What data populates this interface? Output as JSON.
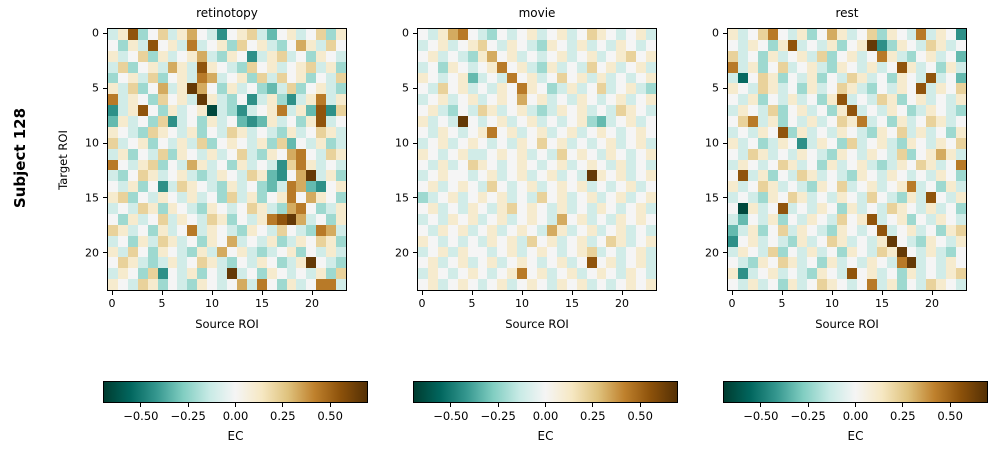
{
  "figure": {
    "left_label": "Subject 128"
  },
  "chart_data": {
    "type": "heatmap",
    "n_rows": 24,
    "n_cols": 24,
    "value_encoding": {
      "letters": "abcdefghijklm",
      "min": -0.66,
      "step": 0.11,
      "note": "each letter in rows strings maps to EC value = min + index*step; spaces are ignored"
    },
    "panels": [
      {
        "title": "retinotopy",
        "xlabel": "Source ROI",
        "ylabel": "Target ROI",
        "x_tick_labels": [
          "0",
          "5",
          "10",
          "15",
          "20"
        ],
        "y_tick_labels": [
          "0",
          "5",
          "10",
          "15",
          "20"
        ],
        "x_tick_values": [
          0,
          5,
          10,
          15,
          20
        ],
        "y_tick_values": [
          0,
          5,
          10,
          15,
          20
        ],
        "rows": [
          "fhlegi fhjgfc ghifdg hfgieh",
          "gehflg hfkfgh eighfe gjhfig",
          "hfgieh fghjfe hgcfhi fgehgf",
          "fieghf jhflhg feighf ghifhe",
          "eghfie ghfkjf gheifi ghegfi",
          "hfiegj fhmjge hfgedf ieghfe",
          "kfhgei ghfmhf egcfhe cfhkfh",
          "cfhlge hfghaf ecfghk fhdlci",
          "dhfgei cfgehf gdcdhf gehlfg",
          "hgfeih gfhegf ihfgfe hfgihf",
          "ifgheg fhfieg hgfhei dgfhef",
          "fhegfi ehgfhf gifehg jkgfih",
          "kgfhie gfjhfg ehfgfc ikhfgf",
          "fegihf ghfefh gfihdc gjmfhe",
          "gfhegc fihgfe hfgedf kjdcgh",
          "hiegfh gfhfge ifhegh kgjhge",
          "fgfihe hgfehg fgihfe jkgefh",
          "gehfgi fhgfih egfhkl mjfgeh",
          "ihfgeh fgkfhg fehgfi gfekjf",
          "fgehfi hfgehg jfgfhe fhgihe",
          "hfigeh gfehfj ghfefg hegfhf",
          "gihfef hfgihf egfhge fhmgfe",
          "fhgeic gfhegf mfgehg fgfhei",
          "hgfihe gfehgf gjfkge hfgkkf"
        ]
      },
      {
        "title": "movie",
        "xlabel": "Source ROI",
        "ylabel": "",
        "x_tick_labels": [
          "0",
          "5",
          "10",
          "15",
          "20"
        ],
        "y_tick_labels": [
          "0",
          "5",
          "10",
          "15",
          "20"
        ],
        "x_tick_values": [
          0,
          5,
          10,
          15,
          20
        ],
        "y_tick_values": [
          0,
          5,
          10,
          15,
          20
        ],
        "rows": [
          "gfhjkg fegfgh fghfgi hgfghf",
          "fghfgh igfhgf ehgfhf gfhgfg",
          "ghfgfe hjghfg fghfgh fghigh",
          "fgehgf ghkghf ehfgfi ghfghf",
          "hgfghd fgfkgh fgighf hfgfgh",
          "gfighf gfhgkh gefhfg ifghfe",
          "fghfgh fghgjg hfgfhg fghfgh",
          "ghfegf ihfghf efhghf gfihgf",
          "hfgfmg fghfgh fgfghe dfghfg",
          "gfhgfg hkghfg hfghfg hgfghg",
          "fghfgh gfgfhg ighfgf ghfghf",
          "hgfghf fghghf gfighg fhgfgh",
          "gfhfgi hgfghg fghfgh gfhfgf",
          "fghggf ghfghf ghfgfm hghfgh",
          "ghfghg figfgh fghghf gfghfg",
          "efghfg hghfgf ighfgh fghfgh",
          "ghfgfh gfhigh gfhfgf hgfghf",
          "fgfhgh fghfgh gfjghf gfhghg",
          "gfhghf ghfghg fjhfgh fghfgf",
          "hgfgfg fhghfi ghfghf gihfgh",
          "fghfhg gfghfg hgfghi fgfghf",
          "ghfghf ghfghg fghfgl ghfghf",
          "fhgfgh gfghkg hfghfg hgfhgf",
          "ghfghg fghfgh gfhghf gfghgh"
        ]
      },
      {
        "title": "rest",
        "xlabel": "Source ROI",
        "ylabel": "",
        "x_tick_labels": [
          "0",
          "5",
          "10",
          "15",
          "20"
        ],
        "y_tick_labels": [
          "0",
          "5",
          "10",
          "15",
          "20"
        ],
        "x_tick_values": [
          0,
          5,
          10,
          15,
          20
        ],
        "y_tick_values": [
          0,
          5,
          10,
          15,
          20
        ],
        "rows": [
          "hfgikg fhegjh fgiehg fkfhgc",
          "gfhgeh lfgfhe ghmceh gfihfg",
          "ifgehf ghfieg hfgkhf eghfgd",
          "kfhegi fghfeh gfhfgl hfgehf",
          "fbgihe gfhegf ihfgeh gflfgd",
          "hgfihf gehfgi hfegfh glfhgi",
          "gfhegf hfgehl fgfihe ghfgfh",
          "fhgfie ghfgeh lfgfhg efhgfe",
          "gikfhe gfhfgi hkfgeh fgihfg",
          "fgfhgl ehfgfh gfehgi fhfgeh",
          "hfgefh gcfhge ifghfe hgfhgi",
          "gfihfg fhgfeh gfhgfi eghjhf",
          "fhgfgi hfgehf ghfefh gihfgk",
          "glfheg fihfgf ehgfhg fgfhge",
          "hfgihf gfehgi fghfgh kfgehf",
          "fgfehg ihfgfh gfigfe hflgfh",
          "gahfgl fgfhge hfgfih gfhfge",
          "fdgfhe gfhgfi ghlfgh egfhgf",
          "dfhegi fhgfeh gfglfg hfgehi",
          "cghfgf ehfgih fgfhmg fehgfh",
          "fhgfie gfhfge hgfihm gfhfeg",
          "gfehgi hfgehf gfhgfk mfgfhg",
          "hcfghf gfehgf lghfge hfgfhi",
          "gfhfge hfgihg fgkfhe gfihgf"
        ]
      }
    ],
    "colorbar": {
      "label": "EC",
      "tick_labels": [
        "−0.50",
        "−0.25",
        "0.00",
        "0.25",
        "0.50"
      ],
      "tick_values": [
        -0.5,
        -0.25,
        0.0,
        0.25,
        0.5
      ],
      "vmin": -0.7,
      "vmax": 0.7,
      "colormap_name_hint": "teal-white-brown diverging (BrBG reversed)",
      "colormap_stops": [
        "#003c30",
        "#01665e",
        "#35978f",
        "#80cdc1",
        "#c7eae5",
        "#f5f5f5",
        "#f6e8c3",
        "#dfc27d",
        "#bf812d",
        "#8c510a",
        "#543005"
      ]
    }
  }
}
